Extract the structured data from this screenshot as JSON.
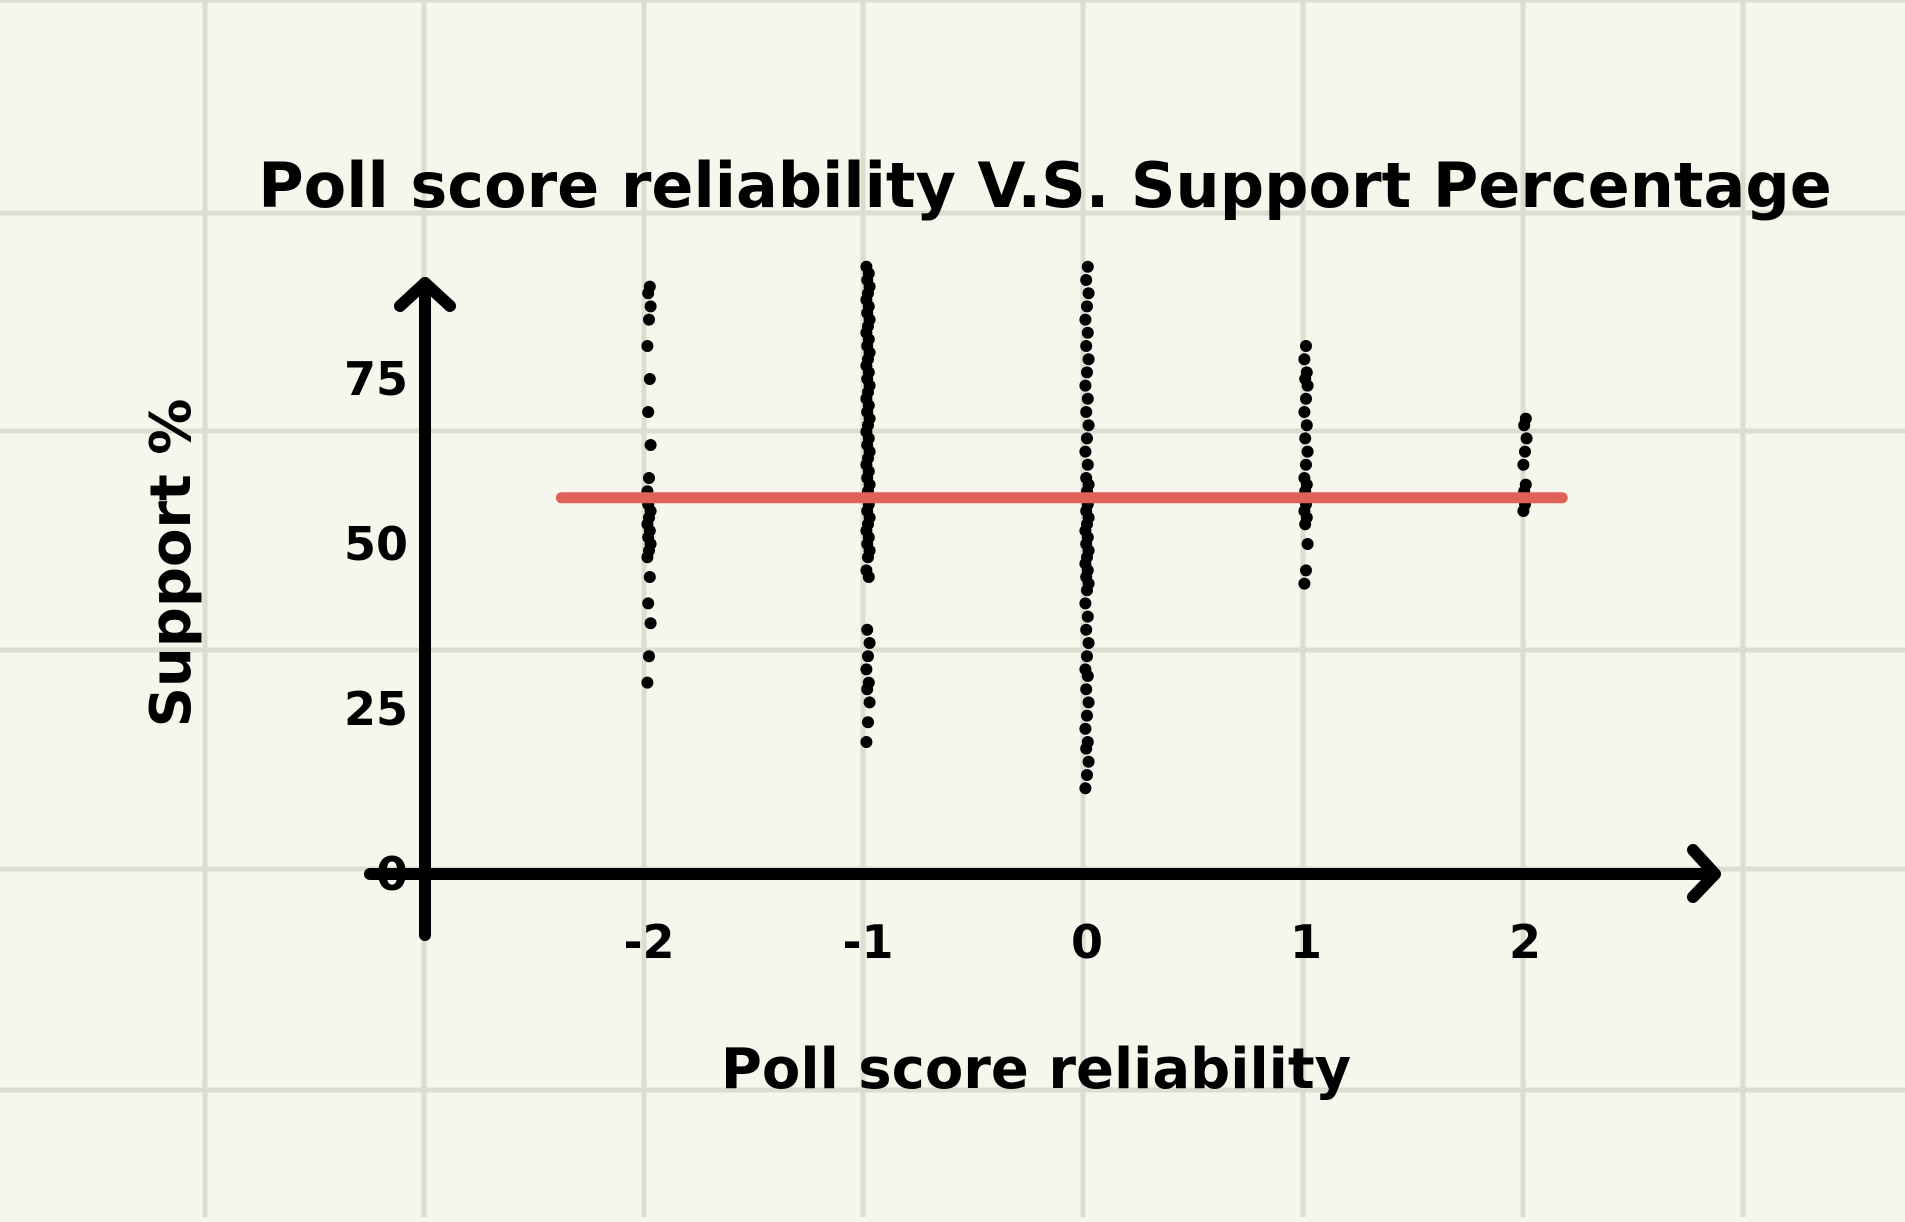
{
  "chart_data": {
    "type": "scatter",
    "title": "Poll score reliability V.S. Support Percentage",
    "xlabel": "Poll score reliability",
    "ylabel": "Support %",
    "xlim": [
      -2.5,
      2.8
    ],
    "ylim": [
      0,
      100
    ],
    "x_ticks": [
      -2,
      -1,
      0,
      1,
      2
    ],
    "x_tick_labels": [
      "-2",
      "-1",
      "0",
      "1",
      "2"
    ],
    "y_ticks": [
      0,
      25,
      50,
      75
    ],
    "y_tick_labels": [
      "0",
      "25",
      "50",
      "75"
    ],
    "grid": true,
    "legend": "none",
    "colors": {
      "background": "#f7f6ec",
      "grid": "#dcdcd0",
      "points": "#000000",
      "axes": "#000000",
      "mean_line": "#e0605a"
    },
    "series": [
      {
        "x": -2,
        "values": [
          29,
          33,
          38,
          41,
          45,
          48,
          49,
          50,
          51,
          52,
          53,
          54,
          55,
          56,
          57,
          58,
          60,
          65,
          70,
          75,
          80,
          84,
          86,
          88,
          89
        ]
      },
      {
        "x": -1,
        "values": [
          20,
          23,
          26,
          28,
          29,
          31,
          33,
          35,
          37,
          45,
          46,
          48,
          49,
          50,
          51,
          52,
          53,
          54,
          55,
          56,
          57,
          58,
          59,
          60,
          61,
          62,
          63,
          64,
          65,
          66,
          67,
          68,
          69,
          70,
          71,
          72,
          73,
          74,
          75,
          76,
          77,
          78,
          79,
          80,
          81,
          82,
          83,
          84,
          85,
          86,
          87,
          88,
          89,
          90,
          91,
          92
        ]
      },
      {
        "x": 0,
        "values": [
          13,
          15,
          17,
          19,
          20,
          22,
          24,
          26,
          28,
          30,
          31,
          33,
          35,
          37,
          39,
          41,
          43,
          44,
          45,
          46,
          47,
          48,
          49,
          50,
          51,
          52,
          53,
          54,
          55,
          56,
          57,
          58,
          59,
          60,
          62,
          64,
          66,
          68,
          70,
          72,
          74,
          76,
          78,
          80,
          82,
          84,
          86,
          88,
          90,
          92
        ]
      },
      {
        "x": 1,
        "values": [
          44,
          46,
          50,
          53,
          54,
          55,
          56,
          57,
          58,
          59,
          60,
          62,
          64,
          66,
          68,
          70,
          72,
          74,
          75,
          76,
          78,
          80
        ]
      },
      {
        "x": 2,
        "values": [
          55,
          56,
          57,
          58,
          59,
          62,
          64,
          66,
          68,
          69
        ]
      }
    ],
    "mean_line": {
      "y": 57,
      "x_range": [
        -2.4,
        2.17
      ]
    }
  }
}
